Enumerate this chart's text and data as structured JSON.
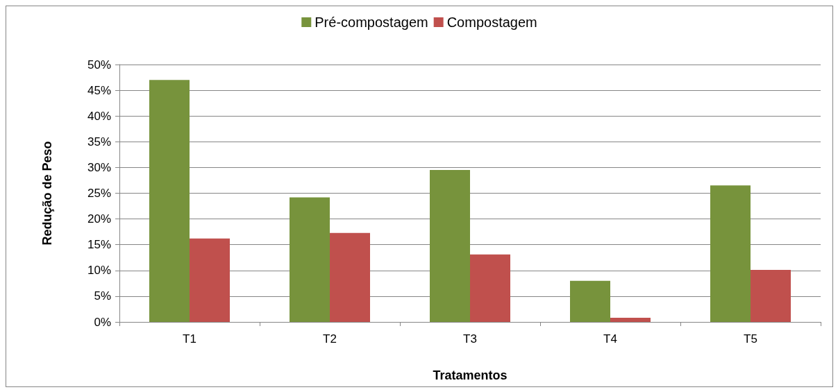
{
  "chart_data": {
    "type": "bar",
    "xlabel": "Tratamentos",
    "ylabel": "Redução de Peso",
    "categories": [
      "T1",
      "T2",
      "T3",
      "T4",
      "T5"
    ],
    "series": [
      {
        "name": "Pré-compostagem",
        "color": "#77933c",
        "values": [
          47,
          24.2,
          29.5,
          8,
          26.5
        ]
      },
      {
        "name": "Compostagem",
        "color": "#c0504d",
        "values": [
          16.2,
          17.3,
          13.1,
          0.8,
          10.1
        ]
      }
    ],
    "ylim": [
      0,
      50
    ],
    "yticks": [
      {
        "value": 0,
        "label": "0%"
      },
      {
        "value": 5,
        "label": "5%"
      },
      {
        "value": 10,
        "label": "10%"
      },
      {
        "value": 15,
        "label": "15%"
      },
      {
        "value": 20,
        "label": "20%"
      },
      {
        "value": 25,
        "label": "25%"
      },
      {
        "value": 30,
        "label": "30%"
      },
      {
        "value": 35,
        "label": "35%"
      },
      {
        "value": 40,
        "label": "40%"
      },
      {
        "value": 45,
        "label": "45%"
      },
      {
        "value": 50,
        "label": "50%"
      }
    ],
    "grid": "y",
    "legend": "top"
  }
}
